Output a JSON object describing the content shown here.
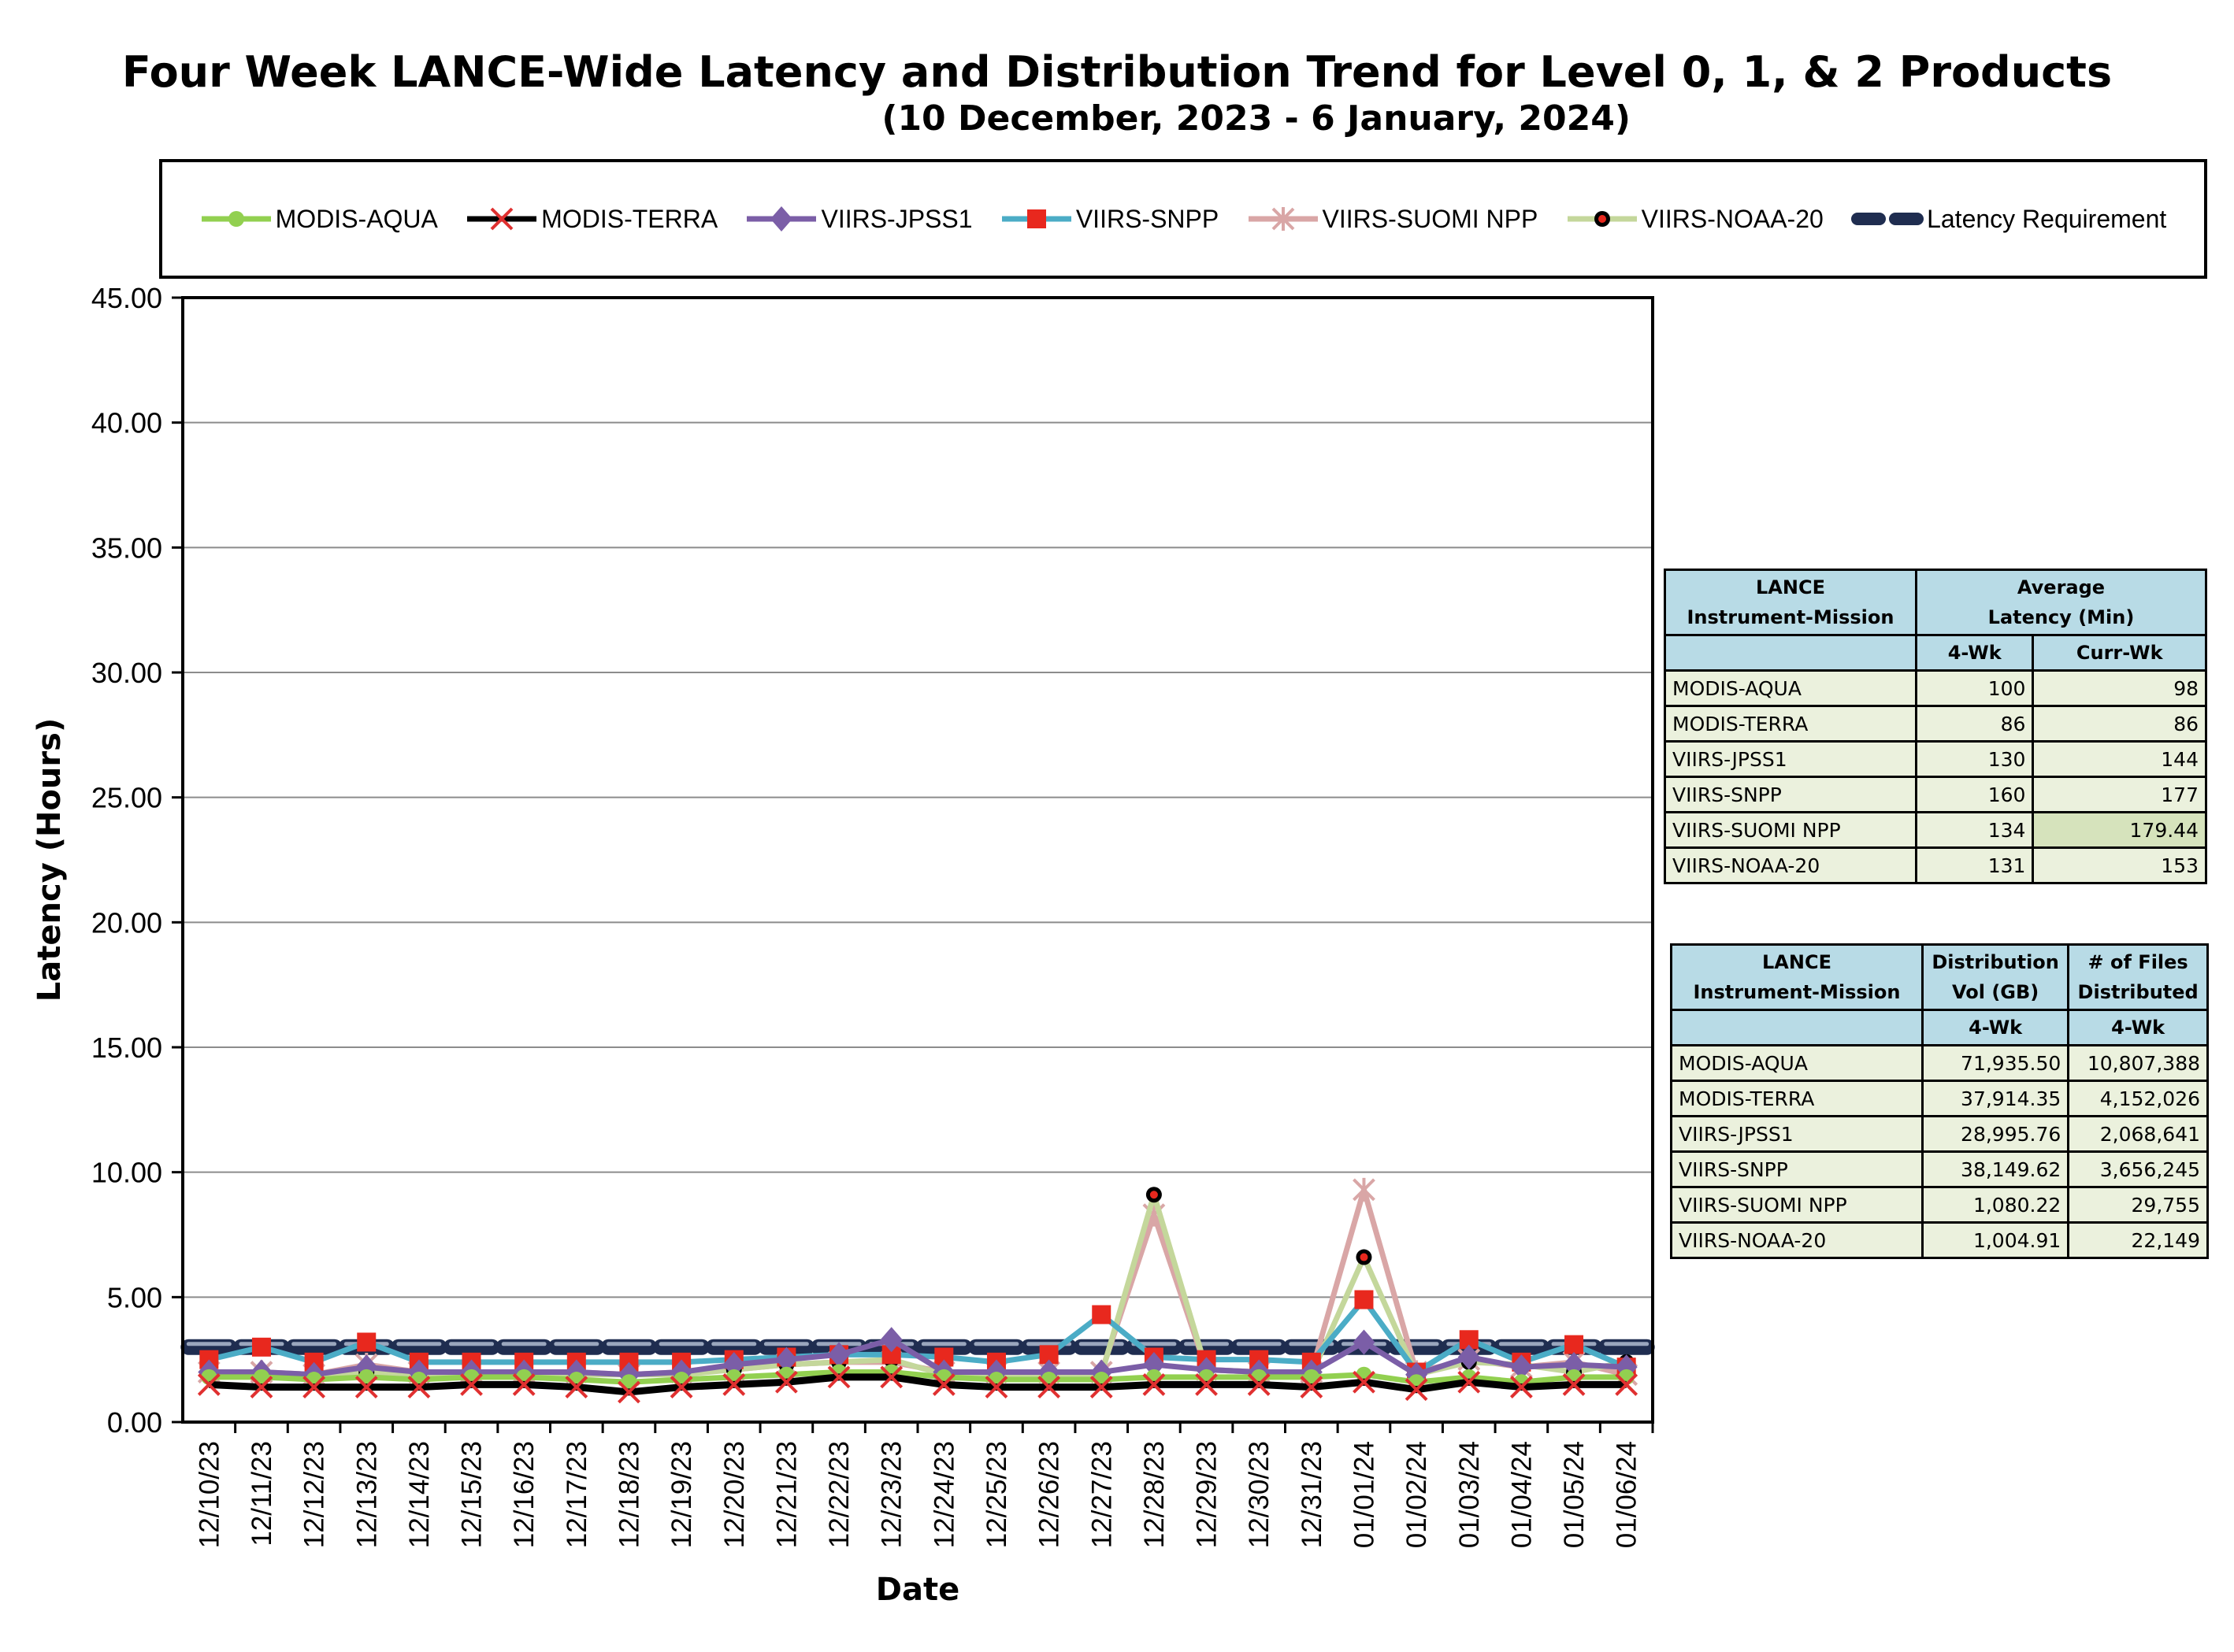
{
  "chart_data": {
    "type": "line",
    "title": "Four Week LANCE-Wide Latency and Distribution Trend for Level 0, 1, & 2 Products",
    "subtitle": "(10  December,  2023  -  6  January, 2024)",
    "xlabel": "Date",
    "ylabel": "Latency (Hours)",
    "ylim": [
      0,
      45
    ],
    "yticks": [
      "0.00",
      "5.00",
      "10.00",
      "15.00",
      "20.00",
      "25.00",
      "30.00",
      "35.00",
      "40.00",
      "45.00"
    ],
    "grid": true,
    "legend_position": "top",
    "x": [
      "12/10/23",
      "12/11/23",
      "12/12/23",
      "12/13/23",
      "12/14/23",
      "12/15/23",
      "12/16/23",
      "12/17/23",
      "12/18/23",
      "12/19/23",
      "12/20/23",
      "12/21/23",
      "12/22/23",
      "12/23/23",
      "12/24/23",
      "12/25/23",
      "12/26/23",
      "12/27/23",
      "12/28/23",
      "12/29/23",
      "12/30/23",
      "12/31/23",
      "01/01/24",
      "01/02/24",
      "01/03/24",
      "01/04/24",
      "01/05/24",
      "01/06/24"
    ],
    "series": [
      {
        "name": "MODIS-AQUA",
        "color": "#92d050",
        "marker": "circle",
        "values": [
          1.8,
          1.8,
          1.7,
          1.8,
          1.7,
          1.8,
          1.8,
          1.7,
          1.6,
          1.7,
          1.8,
          1.9,
          2.0,
          2.0,
          1.8,
          1.7,
          1.7,
          1.7,
          1.8,
          1.8,
          1.8,
          1.8,
          1.9,
          1.6,
          1.8,
          1.6,
          1.8,
          1.8
        ]
      },
      {
        "name": "MODIS-TERRA",
        "color": "#000000",
        "marker": "x",
        "values": [
          1.5,
          1.4,
          1.4,
          1.4,
          1.4,
          1.5,
          1.5,
          1.4,
          1.2,
          1.4,
          1.5,
          1.6,
          1.8,
          1.8,
          1.5,
          1.4,
          1.4,
          1.4,
          1.5,
          1.5,
          1.5,
          1.4,
          1.6,
          1.3,
          1.6,
          1.4,
          1.5,
          1.5
        ]
      },
      {
        "name": "VIIRS-JPSS1",
        "color": "#7b5ea7",
        "marker": "diamond",
        "values": [
          2.0,
          2.0,
          1.9,
          2.2,
          2.0,
          2.0,
          2.0,
          2.0,
          1.9,
          2.0,
          2.3,
          2.5,
          2.7,
          3.3,
          2.0,
          2.0,
          2.0,
          2.0,
          2.3,
          2.1,
          2.0,
          2.0,
          3.2,
          1.9,
          2.6,
          2.2,
          2.3,
          2.2
        ]
      },
      {
        "name": "VIIRS-SNPP",
        "color": "#4bacc6",
        "marker": "square",
        "values": [
          2.5,
          3.0,
          2.4,
          3.2,
          2.4,
          2.4,
          2.4,
          2.4,
          2.4,
          2.4,
          2.5,
          2.6,
          2.7,
          2.7,
          2.6,
          2.4,
          2.7,
          4.3,
          2.6,
          2.5,
          2.5,
          2.4,
          4.9,
          2.0,
          3.3,
          2.4,
          3.1,
          2.2
        ]
      },
      {
        "name": "VIIRS-SUOMI NPP",
        "color": "#d9a6a6",
        "marker": "star",
        "values": [
          2.0,
          2.0,
          1.9,
          2.3,
          2.0,
          2.0,
          2.0,
          2.0,
          1.9,
          2.0,
          2.1,
          2.3,
          2.4,
          2.4,
          2.0,
          2.0,
          2.0,
          2.0,
          8.3,
          2.1,
          2.0,
          2.0,
          9.3,
          2.0,
          2.5,
          2.2,
          2.4,
          1.9
        ]
      },
      {
        "name": "VIIRS-NOAA-20",
        "color": "#c4d79b",
        "marker": "dot",
        "values": [
          1.9,
          1.9,
          1.9,
          2.0,
          1.9,
          1.9,
          2.0,
          1.9,
          1.9,
          1.9,
          2.1,
          2.3,
          2.4,
          2.5,
          1.9,
          1.9,
          1.9,
          1.9,
          9.1,
          2.1,
          2.0,
          1.9,
          6.6,
          1.9,
          2.4,
          2.3,
          2.0,
          2.4
        ]
      },
      {
        "name": "Latency Requirement",
        "color": "#1f2d50",
        "marker": "dash",
        "values": [
          3,
          3,
          3,
          3,
          3,
          3,
          3,
          3,
          3,
          3,
          3,
          3,
          3,
          3,
          3,
          3,
          3,
          3,
          3,
          3,
          3,
          3,
          3,
          3,
          3,
          3,
          3,
          3
        ]
      }
    ]
  },
  "tables": {
    "latency": {
      "header": {
        "col1": [
          "LANCE",
          "Instrument-Mission"
        ],
        "col2": [
          "Average",
          "Latency (Min)"
        ],
        "sub1": "4-Wk",
        "sub2": "Curr-Wk"
      },
      "rows": [
        {
          "name": "MODIS-AQUA",
          "four_wk": "100",
          "curr_wk": "98"
        },
        {
          "name": "MODIS-TERRA",
          "four_wk": "86",
          "curr_wk": "86"
        },
        {
          "name": "VIIRS-JPSS1",
          "four_wk": "130",
          "curr_wk": "144"
        },
        {
          "name": "VIIRS-SNPP",
          "four_wk": "160",
          "curr_wk": "177"
        },
        {
          "name": "VIIRS-SUOMI NPP",
          "four_wk": "134",
          "curr_wk": "179.44"
        },
        {
          "name": "VIIRS-NOAA-20",
          "four_wk": "131",
          "curr_wk": "153"
        }
      ]
    },
    "distribution": {
      "header": {
        "col1": [
          "LANCE",
          "Instrument-Mission"
        ],
        "col2": [
          "Distribution",
          "Vol (GB)"
        ],
        "col3": [
          "# of Files",
          "Distributed"
        ],
        "sub1": "4-Wk",
        "sub2": "4-Wk"
      },
      "rows": [
        {
          "name": "MODIS-AQUA",
          "vol": "71,935.50",
          "files": "10,807,388"
        },
        {
          "name": "MODIS-TERRA",
          "vol": "37,914.35",
          "files": "4,152,026"
        },
        {
          "name": "VIIRS-JPSS1",
          "vol": "28,995.76",
          "files": "2,068,641"
        },
        {
          "name": "VIIRS-SNPP",
          "vol": "38,149.62",
          "files": "3,656,245"
        },
        {
          "name": "VIIRS-SUOMI NPP",
          "vol": "1,080.22",
          "files": "29,755"
        },
        {
          "name": "VIIRS-NOAA-20",
          "vol": "1,004.91",
          "files": "22,149"
        }
      ]
    }
  }
}
